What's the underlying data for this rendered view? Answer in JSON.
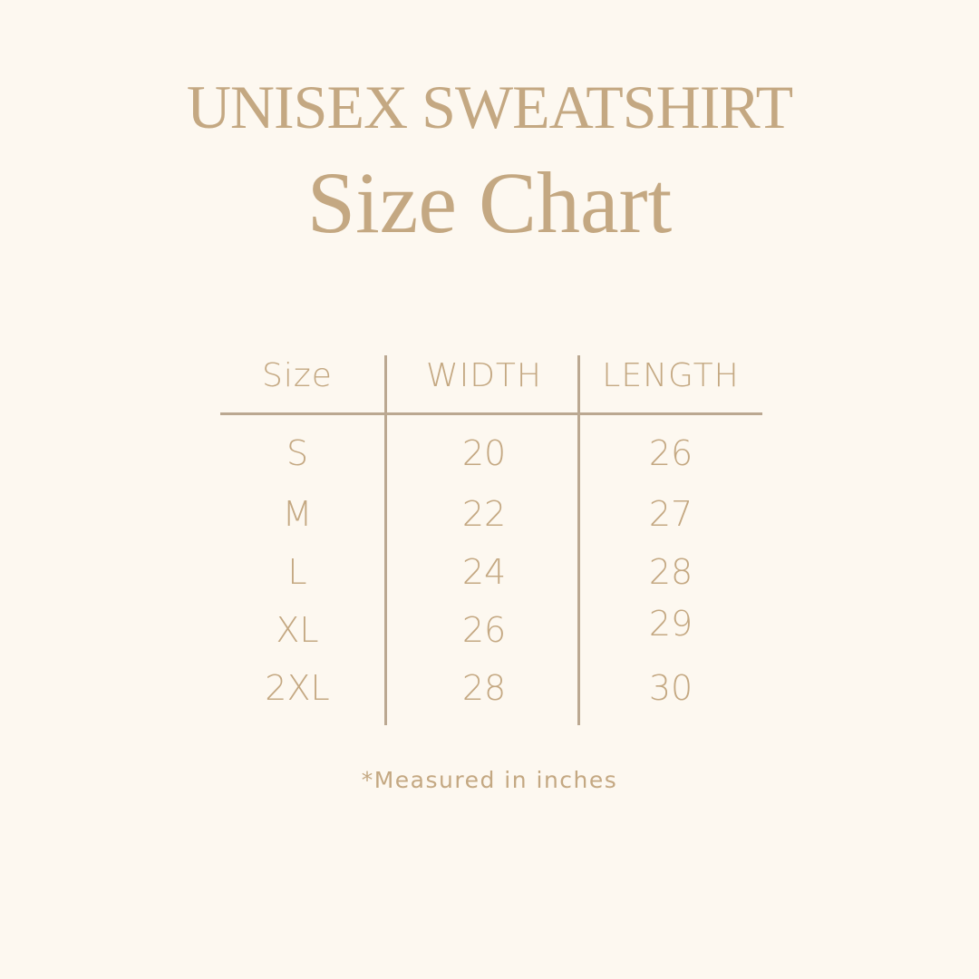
{
  "header": {
    "title_line1": "UNISEX SWEATSHIRT",
    "title_line2": "Size Chart"
  },
  "table": {
    "columns": [
      "Size",
      "WIDTH",
      "LENGTH"
    ],
    "rows": [
      [
        "S",
        "20",
        "26"
      ],
      [
        "M",
        "22",
        "27"
      ],
      [
        "L",
        "24",
        "28"
      ],
      [
        "XL",
        "26",
        "29"
      ],
      [
        "2XL",
        "28",
        "30"
      ]
    ]
  },
  "footnote": "*Measured in inches",
  "colors": {
    "background": "#fdf8f0",
    "text": "#c4a882",
    "rules": "#bba891"
  }
}
